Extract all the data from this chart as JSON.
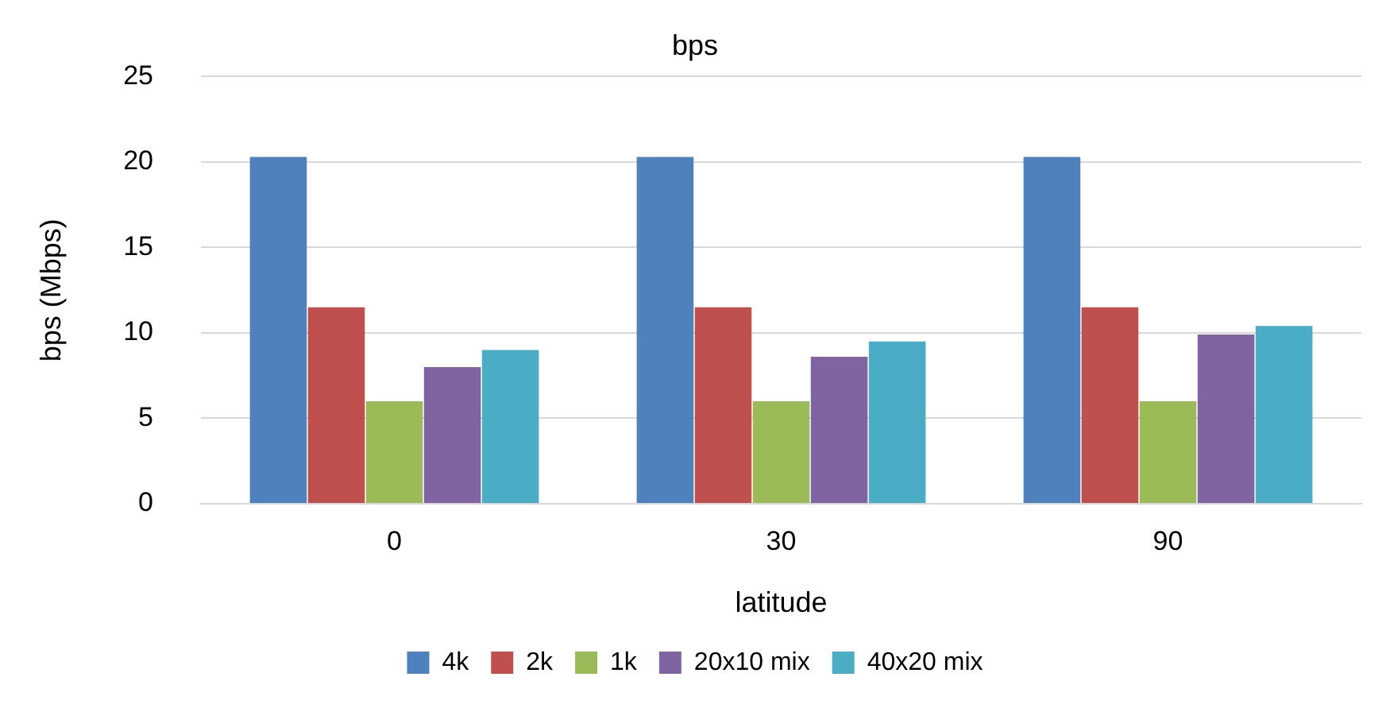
{
  "chart_data": {
    "type": "bar",
    "title": "bps",
    "xlabel": "latitude",
    "ylabel": "bps (Mbps)",
    "categories": [
      "0",
      "30",
      "90"
    ],
    "series": [
      {
        "name": "4k",
        "color": "#4f81bd",
        "values": [
          20.3,
          20.3,
          20.3
        ]
      },
      {
        "name": "2k",
        "color": "#c0504d",
        "values": [
          11.5,
          11.5,
          11.5
        ]
      },
      {
        "name": "1k",
        "color": "#9bbb59",
        "values": [
          6,
          6,
          6
        ]
      },
      {
        "name": "20x10 mix",
        "color": "#8064a2",
        "values": [
          8,
          8.6,
          9.9
        ]
      },
      {
        "name": "40x20 mix",
        "color": "#4bacc6",
        "values": [
          9,
          9.5,
          10.4
        ]
      }
    ],
    "ylim": [
      0,
      25
    ],
    "yticks": [
      0,
      5,
      10,
      15,
      20,
      25
    ],
    "grid": "y",
    "legend": "bottom"
  }
}
